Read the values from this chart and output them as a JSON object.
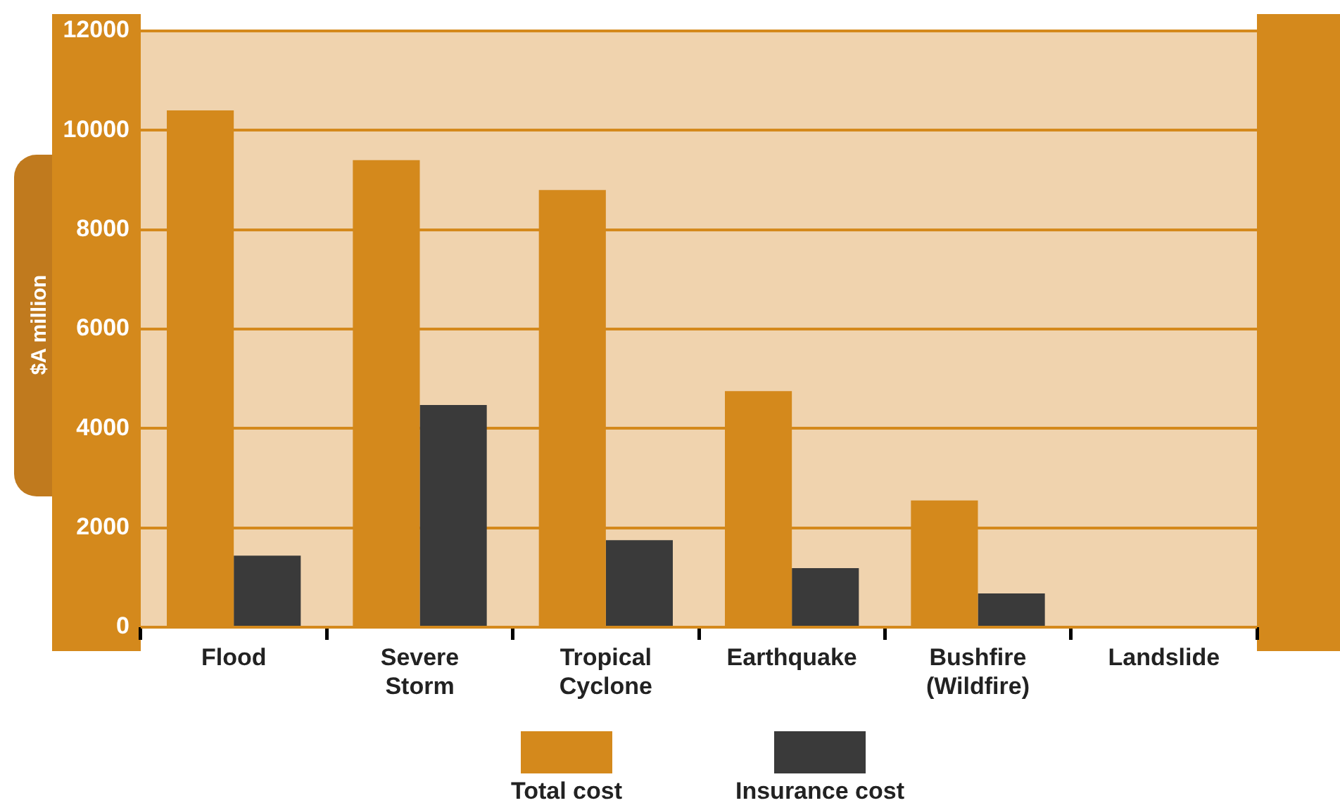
{
  "chart_data": {
    "type": "bar",
    "ylabel": "$A million",
    "categories": [
      "Flood",
      "Severe Storm",
      "Tropical Cyclone",
      "Earthquake",
      "Bushfire (Wildfire)",
      "Landslide"
    ],
    "series": [
      {
        "name": "Total cost",
        "color": "#d4891c",
        "values": [
          10400,
          9400,
          8800,
          4750,
          2550,
          30
        ]
      },
      {
        "name": "Insurance cost",
        "color": "#3a3a3a",
        "values": [
          1440,
          4470,
          1750,
          1190,
          680,
          0
        ]
      }
    ],
    "ylim": [
      0,
      12000
    ],
    "yticks": [
      0,
      2000,
      4000,
      6000,
      8000,
      10000,
      12000
    ],
    "grid": "y",
    "legend": "bottom"
  }
}
